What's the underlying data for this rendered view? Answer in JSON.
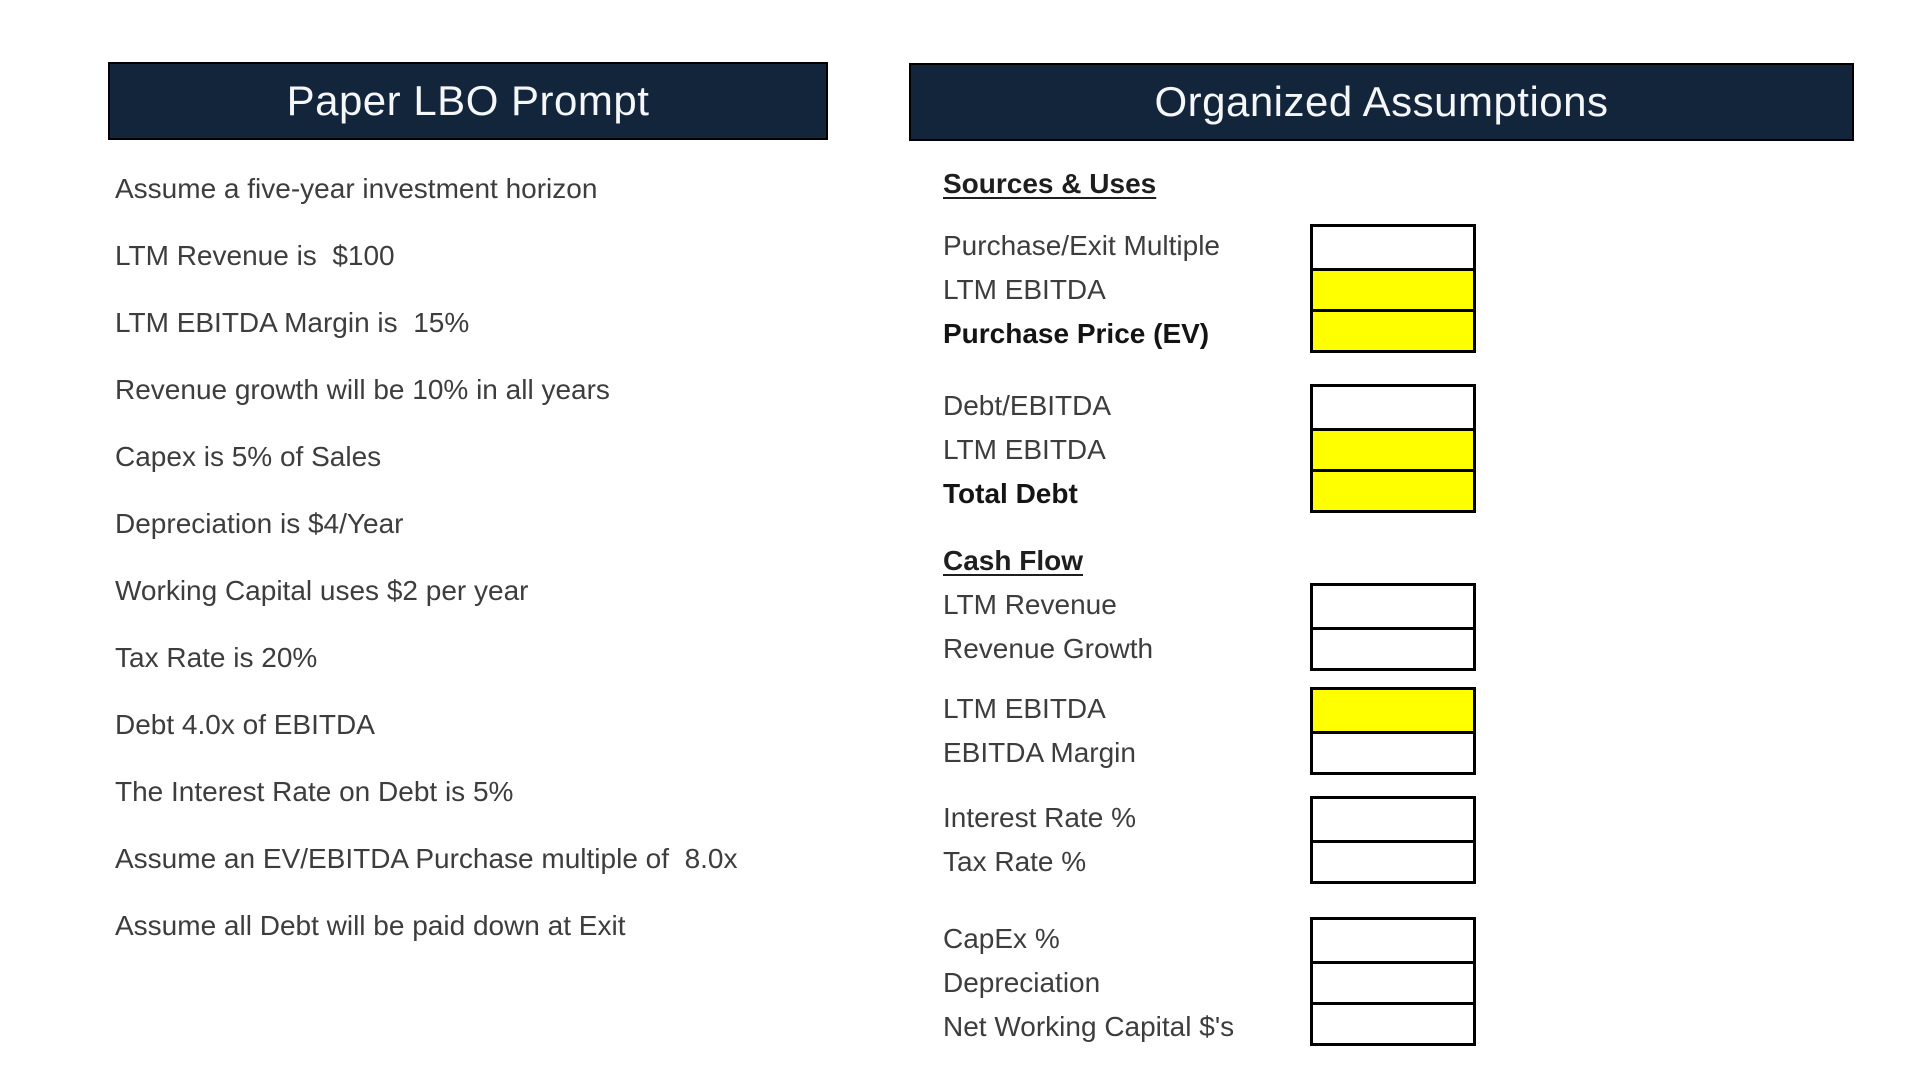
{
  "colors": {
    "header_bg": "#13253B",
    "header_text": "#F4F6F8",
    "highlight": "#FFFF00",
    "border": "#000000",
    "text": "#3D3D3D",
    "heading_text": "#1E1E1E"
  },
  "left_panel": {
    "title": "Paper LBO Prompt",
    "items": [
      "Assume a five-year investment horizon",
      "LTM Revenue is  $100",
      "LTM EBITDA Margin is  15%",
      "Revenue growth will be 10% in all years",
      "Capex is 5% of Sales",
      "Depreciation is $4/Year",
      "Working Capital uses $2 per year",
      "Tax Rate is 20%",
      "Debt 4.0x of EBITDA",
      "The Interest Rate on Debt is 5%",
      "Assume an EV/EBITDA Purchase multiple of  8.0x",
      "Assume all Debt will be paid down at Exit"
    ]
  },
  "right_panel": {
    "title": "Organized Assumptions",
    "sections": [
      {
        "heading": "Sources & Uses"
      },
      {
        "heading": "Cash Flow"
      }
    ],
    "groups": [
      {
        "rows": [
          {
            "label": "Purchase/Exit Multiple",
            "weight": "regular",
            "fill": "white"
          },
          {
            "label": "LTM EBITDA",
            "weight": "regular",
            "fill": "yellow"
          },
          {
            "label": "Purchase Price (EV)",
            "weight": "bold",
            "fill": "yellow"
          }
        ]
      },
      {
        "rows": [
          {
            "label": "Debt/EBITDA",
            "weight": "regular",
            "fill": "white"
          },
          {
            "label": "LTM EBITDA",
            "weight": "regular",
            "fill": "yellow"
          },
          {
            "label": "Total Debt",
            "weight": "bold",
            "fill": "yellow"
          }
        ]
      },
      {
        "rows": [
          {
            "label": "LTM Revenue",
            "weight": "regular",
            "fill": "white"
          },
          {
            "label": "Revenue Growth",
            "weight": "regular",
            "fill": "white"
          }
        ]
      },
      {
        "rows": [
          {
            "label": "LTM EBITDA",
            "weight": "regular",
            "fill": "yellow"
          },
          {
            "label": "EBITDA Margin",
            "weight": "regular",
            "fill": "white"
          }
        ]
      },
      {
        "rows": [
          {
            "label": "Interest Rate %",
            "weight": "regular",
            "fill": "white"
          },
          {
            "label": "Tax Rate %",
            "weight": "regular",
            "fill": "white"
          }
        ]
      },
      {
        "rows": [
          {
            "label": "CapEx %",
            "weight": "regular",
            "fill": "white"
          },
          {
            "label": "Depreciation",
            "weight": "regular",
            "fill": "white"
          },
          {
            "label": "Net Working Capital $'s",
            "weight": "regular",
            "fill": "white"
          }
        ]
      }
    ]
  }
}
